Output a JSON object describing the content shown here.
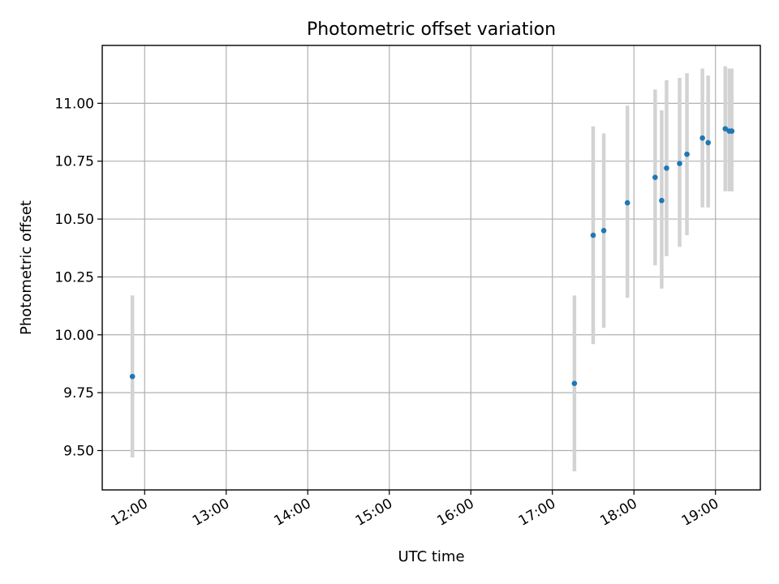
{
  "chart_data": {
    "type": "scatter",
    "title": "Photometric offset variation",
    "xlabel": "UTC time",
    "ylabel": "Photometric offset",
    "x_unit": "hours",
    "xlim": [
      11.48,
      19.55
    ],
    "ylim": [
      9.33,
      11.25
    ],
    "grid": true,
    "x_ticks": [
      {
        "value": 12,
        "label": "12:00"
      },
      {
        "value": 13,
        "label": "13:00"
      },
      {
        "value": 14,
        "label": "14:00"
      },
      {
        "value": 15,
        "label": "15:00"
      },
      {
        "value": 16,
        "label": "16:00"
      },
      {
        "value": 17,
        "label": "17:00"
      },
      {
        "value": 18,
        "label": "18:00"
      },
      {
        "value": 19,
        "label": "19:00"
      }
    ],
    "y_ticks": [
      {
        "value": 9.5,
        "label": "9.50"
      },
      {
        "value": 9.75,
        "label": "9.75"
      },
      {
        "value": 10.0,
        "label": "10.00"
      },
      {
        "value": 10.25,
        "label": "10.25"
      },
      {
        "value": 10.5,
        "label": "10.50"
      },
      {
        "value": 10.75,
        "label": "10.75"
      },
      {
        "value": 11.0,
        "label": "11.00"
      }
    ],
    "point_color": "#1f77b4",
    "error_color": "#d3d3d3",
    "points": [
      {
        "x": 11.85,
        "y": 9.82,
        "low": 9.47,
        "high": 10.17
      },
      {
        "x": 17.27,
        "y": 9.79,
        "low": 9.41,
        "high": 10.17
      },
      {
        "x": 17.5,
        "y": 10.43,
        "low": 9.96,
        "high": 10.9
      },
      {
        "x": 17.63,
        "y": 10.45,
        "low": 10.03,
        "high": 10.87
      },
      {
        "x": 17.92,
        "y": 10.57,
        "low": 10.16,
        "high": 10.99
      },
      {
        "x": 18.26,
        "y": 10.68,
        "low": 10.3,
        "high": 11.06
      },
      {
        "x": 18.34,
        "y": 10.58,
        "low": 10.2,
        "high": 10.97
      },
      {
        "x": 18.4,
        "y": 10.72,
        "low": 10.34,
        "high": 11.1
      },
      {
        "x": 18.56,
        "y": 10.74,
        "low": 10.38,
        "high": 11.11
      },
      {
        "x": 18.65,
        "y": 10.78,
        "low": 10.43,
        "high": 11.13
      },
      {
        "x": 18.84,
        "y": 10.85,
        "low": 10.55,
        "high": 11.15
      },
      {
        "x": 18.91,
        "y": 10.83,
        "low": 10.55,
        "high": 11.12
      },
      {
        "x": 19.12,
        "y": 10.89,
        "low": 10.62,
        "high": 11.16
      },
      {
        "x": 19.17,
        "y": 10.88,
        "low": 10.62,
        "high": 11.15
      },
      {
        "x": 19.2,
        "y": 10.88,
        "low": 10.62,
        "high": 11.15
      }
    ]
  }
}
